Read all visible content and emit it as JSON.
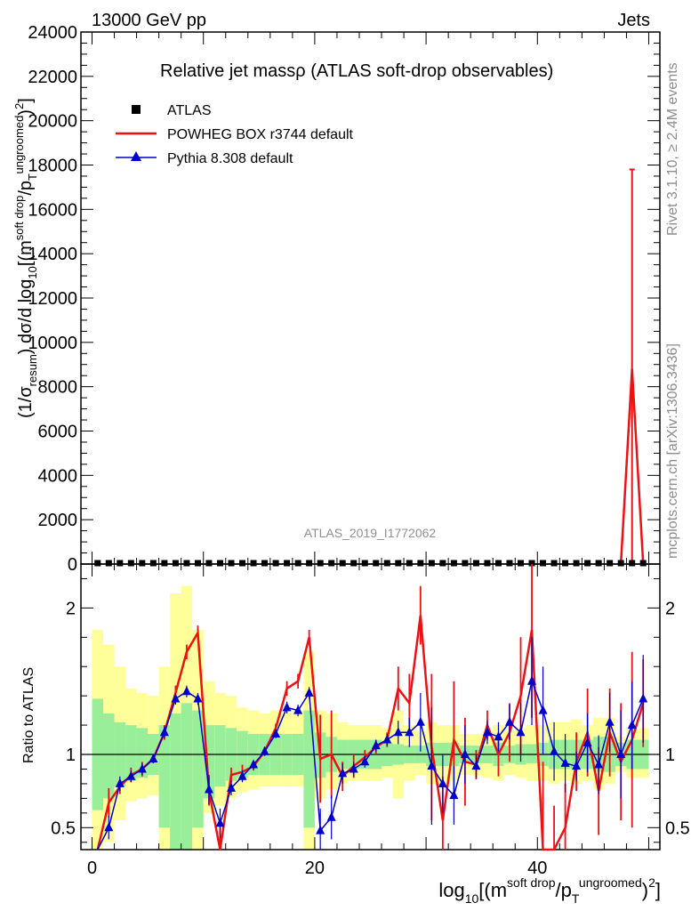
{
  "header": {
    "left": "13000 GeV pp",
    "right": "Jets"
  },
  "side_labels": {
    "rivet": "Rivet 3.1.10, ≥ 2.4M events",
    "mcplots": "mcplots.cern.ch [arXiv:1306.3436]"
  },
  "watermark": "ATLAS_2019_I1772062",
  "chart_data": {
    "type": "line",
    "title": "Relative jet massρ (ATLAS soft-drop observables)",
    "xlabel": "log10[(m^soft drop/pT^ungroomed)^2]",
    "ylabel": "(1/σresum) dσ/d log10[(m^soft drop/pT^ungroomed)^2]",
    "ratio_ylabel": "Ratio to ATLAS",
    "xlim": [
      -1,
      51
    ],
    "ylim": [
      0,
      24000
    ],
    "ratio_ylim": [
      0.35,
      2.3
    ],
    "x_ticks": [
      0,
      20,
      40
    ],
    "y_ticks": [
      2000,
      4000,
      6000,
      8000,
      10000,
      12000,
      14000,
      16000,
      18000,
      20000,
      22000,
      24000
    ],
    "ratio_ticks": [
      0.5,
      1,
      2
    ],
    "legend": {
      "placement": "top-left",
      "entries": [
        "ATLAS",
        "POWHEG BOX r3744 default",
        "Pythia 8.308 default"
      ]
    },
    "series": [
      {
        "name": "ATLAS",
        "color": "#000000",
        "marker": "square",
        "x": [
          0.5,
          1.5,
          2.5,
          3.5,
          4.5,
          5.5,
          6.5,
          7.5,
          8.5,
          9.5,
          10.5,
          11.5,
          12.5,
          13.5,
          14.5,
          15.5,
          16.5,
          17.5,
          18.5,
          19.5,
          20.5,
          21.5,
          22.5,
          23.5,
          24.5,
          25.5,
          26.5,
          27.5,
          28.5,
          29.5,
          30.5,
          31.5,
          32.5,
          33.5,
          34.5,
          35.5,
          36.5,
          37.5,
          38.5,
          39.5,
          40.5,
          41.5,
          42.5,
          43.5,
          44.5,
          45.5,
          46.5,
          47.5,
          48.5,
          49.5
        ],
        "values": [
          20,
          20,
          20,
          20,
          20,
          20,
          20,
          20,
          20,
          20,
          20,
          20,
          20,
          20,
          20,
          20,
          20,
          20,
          20,
          20,
          20,
          20,
          20,
          20,
          20,
          20,
          20,
          20,
          20,
          20,
          20,
          20,
          20,
          20,
          20,
          20,
          20,
          20,
          20,
          20,
          20,
          20,
          20,
          20,
          20,
          20,
          20,
          20,
          20,
          20
        ]
      },
      {
        "name": "POWHEG BOX r3744 default",
        "color": "#ee1111",
        "x": [
          47.5,
          48.5,
          49.5
        ],
        "values": [
          20,
          8800,
          20
        ]
      },
      {
        "name": "Pythia 8.308 default",
        "color": "#0000cc",
        "marker": "triangle",
        "x": [],
        "values": []
      }
    ],
    "ratio": {
      "x": [
        0.5,
        1.5,
        2.5,
        3.5,
        4.5,
        5.5,
        6.5,
        7.5,
        8.5,
        9.5,
        10.5,
        11.5,
        12.5,
        13.5,
        14.5,
        15.5,
        16.5,
        17.5,
        18.5,
        19.5,
        20.5,
        21.5,
        22.5,
        23.5,
        24.5,
        25.5,
        26.5,
        27.5,
        28.5,
        29.5,
        30.5,
        31.5,
        32.5,
        33.5,
        34.5,
        35.5,
        36.5,
        37.5,
        38.5,
        39.5,
        40.5,
        41.5,
        42.5,
        43.5,
        44.5,
        45.5,
        46.5,
        47.5,
        48.5,
        49.5
      ],
      "band_inner": [
        [
          0.62,
          1.38
        ],
        [
          0.7,
          1.28
        ],
        [
          0.78,
          1.22
        ],
        [
          0.82,
          1.2
        ],
        [
          0.84,
          1.18
        ],
        [
          0.86,
          1.14
        ],
        [
          0.5,
          1.2
        ],
        [
          0.3,
          1.28
        ],
        [
          0.3,
          1.35
        ],
        [
          0.5,
          1.3
        ],
        [
          0.7,
          1.2
        ],
        [
          0.78,
          1.2
        ],
        [
          0.82,
          1.18
        ],
        [
          0.84,
          1.16
        ],
        [
          0.86,
          1.14
        ],
        [
          0.86,
          1.14
        ],
        [
          0.86,
          1.14
        ],
        [
          0.86,
          1.14
        ],
        [
          0.86,
          1.14
        ],
        [
          0.5,
          1.3
        ],
        [
          0.84,
          1.15
        ],
        [
          0.88,
          1.12
        ],
        [
          0.9,
          1.1
        ],
        [
          0.9,
          1.1
        ],
        [
          0.9,
          1.1
        ],
        [
          0.9,
          1.1
        ],
        [
          0.92,
          1.08
        ],
        [
          0.93,
          1.07
        ],
        [
          0.94,
          1.06
        ],
        [
          0.94,
          1.06
        ],
        [
          0.92,
          1.08
        ],
        [
          0.92,
          1.08
        ],
        [
          0.92,
          1.08
        ],
        [
          0.94,
          1.06
        ],
        [
          0.94,
          1.06
        ],
        [
          0.94,
          1.06
        ],
        [
          0.92,
          1.08
        ],
        [
          0.94,
          1.06
        ],
        [
          0.93,
          1.07
        ],
        [
          0.94,
          1.07
        ],
        [
          0.92,
          1.08
        ],
        [
          0.9,
          1.1
        ],
        [
          0.9,
          1.1
        ],
        [
          0.9,
          1.1
        ],
        [
          0.9,
          1.1
        ],
        [
          0.88,
          1.12
        ],
        [
          0.88,
          1.12
        ],
        [
          0.92,
          1.08
        ],
        [
          0.9,
          1.1
        ],
        [
          0.9,
          1.1
        ]
      ],
      "band_outer": [
        [
          0.3,
          1.85
        ],
        [
          0.4,
          1.75
        ],
        [
          0.55,
          1.6
        ],
        [
          0.68,
          1.45
        ],
        [
          0.7,
          1.42
        ],
        [
          0.72,
          1.4
        ],
        [
          0.3,
          1.6
        ],
        [
          0.3,
          2.1
        ],
        [
          0.3,
          2.15
        ],
        [
          0.3,
          1.85
        ],
        [
          0.6,
          1.5
        ],
        [
          0.65,
          1.42
        ],
        [
          0.7,
          1.4
        ],
        [
          0.74,
          1.32
        ],
        [
          0.76,
          1.3
        ],
        [
          0.78,
          1.28
        ],
        [
          0.78,
          1.3
        ],
        [
          0.78,
          1.28
        ],
        [
          0.78,
          1.3
        ],
        [
          0.3,
          1.7
        ],
        [
          0.7,
          1.3
        ],
        [
          0.76,
          1.28
        ],
        [
          0.8,
          1.22
        ],
        [
          0.82,
          1.2
        ],
        [
          0.82,
          1.2
        ],
        [
          0.82,
          1.2
        ],
        [
          0.84,
          1.18
        ],
        [
          0.7,
          1.3
        ],
        [
          0.82,
          1.2
        ],
        [
          0.86,
          1.16
        ],
        [
          0.8,
          1.22
        ],
        [
          0.8,
          1.2
        ],
        [
          0.82,
          1.2
        ],
        [
          0.86,
          1.14
        ],
        [
          0.86,
          1.14
        ],
        [
          0.84,
          1.16
        ],
        [
          0.82,
          1.2
        ],
        [
          0.86,
          1.16
        ],
        [
          0.84,
          1.18
        ],
        [
          0.82,
          1.2
        ],
        [
          0.82,
          1.2
        ],
        [
          0.8,
          1.22
        ],
        [
          0.82,
          1.22
        ],
        [
          0.8,
          1.24
        ],
        [
          0.82,
          1.2
        ],
        [
          0.76,
          1.25
        ],
        [
          0.8,
          1.25
        ],
        [
          0.88,
          1.12
        ],
        [
          0.84,
          1.18
        ],
        [
          0.84,
          1.18
        ]
      ],
      "powheg": [
        0.3,
        0.67,
        0.78,
        0.86,
        0.9,
        0.97,
        1.15,
        1.42,
        1.7,
        1.83,
        0.75,
        0.35,
        0.86,
        0.88,
        0.92,
        1.02,
        1.18,
        1.45,
        1.5,
        1.8,
        0.97,
        1.0,
        0.85,
        0.92,
        0.98,
        1.05,
        1.1,
        1.45,
        1.35,
        1.95,
        1.05,
        0.55,
        1.1,
        0.95,
        0.93,
        1.2,
        1.0,
        1.15,
        1.4,
        1.85,
        0.35,
        0.35,
        0.5,
        0.95,
        1.15,
        0.75,
        1.15,
        0.95,
        1.1,
        1.35
      ],
      "pythia": [
        0.3,
        0.5,
        0.8,
        0.85,
        0.9,
        0.97,
        1.15,
        1.38,
        1.43,
        1.38,
        0.76,
        0.53,
        0.77,
        0.85,
        0.93,
        1.02,
        1.14,
        1.32,
        1.3,
        1.42,
        0.48,
        0.57,
        0.87,
        0.9,
        0.95,
        1.06,
        1.1,
        1.15,
        1.15,
        1.22,
        0.92,
        0.8,
        0.72,
        1.0,
        0.92,
        1.15,
        1.12,
        1.22,
        1.15,
        1.5,
        1.3,
        1.02,
        0.94,
        0.92,
        1.08,
        0.93,
        1.22,
        1.0,
        1.2,
        1.38
      ],
      "powheg_err": [
        0.05,
        0.1,
        0.05,
        0.05,
        0.05,
        0.03,
        0.05,
        0.05,
        0.05,
        0.05,
        0.1,
        0.15,
        0.05,
        0.05,
        0.03,
        0.03,
        0.03,
        0.05,
        0.05,
        0.05,
        0.3,
        0.3,
        0.1,
        0.08,
        0.05,
        0.05,
        0.05,
        0.15,
        0.2,
        0.2,
        0.5,
        0.3,
        0.4,
        0.3,
        0.1,
        0.1,
        0.15,
        0.2,
        0.4,
        0.6,
        0.6,
        0.3,
        0.3,
        0.2,
        0.3,
        0.3,
        0.3,
        0.4,
        0.6,
        0.3
      ],
      "pythia_err": [
        0.05,
        0.08,
        0.05,
        0.04,
        0.04,
        0.03,
        0.04,
        0.04,
        0.04,
        0.04,
        0.1,
        0.1,
        0.05,
        0.04,
        0.03,
        0.03,
        0.03,
        0.04,
        0.04,
        0.04,
        0.15,
        0.15,
        0.07,
        0.05,
        0.04,
        0.04,
        0.04,
        0.08,
        0.1,
        0.2,
        0.4,
        0.2,
        0.2,
        0.2,
        0.08,
        0.08,
        0.1,
        0.12,
        0.2,
        0.3,
        0.3,
        0.2,
        0.2,
        0.1,
        0.2,
        0.2,
        0.2,
        0.3,
        0.3,
        0.3
      ]
    }
  }
}
